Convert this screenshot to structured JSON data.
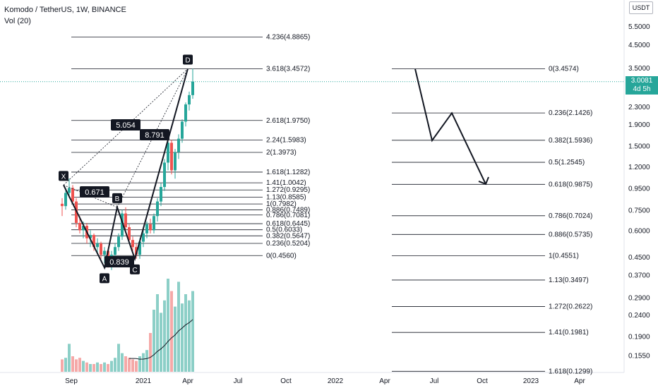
{
  "header": {
    "symbol": "Komodo / TetherUS, 1W, BINANCE",
    "volume": "Vol (20)"
  },
  "axis": {
    "currency": "USDT",
    "last_price": "3.0081",
    "countdown": "4d 5h",
    "price_labels": [
      "5.5000",
      "4.5000",
      "3.5000",
      "2.3000",
      "1.9000",
      "1.5000",
      "1.2000",
      "0.9500",
      "0.7500",
      "0.6000",
      "0.4500",
      "0.3700",
      "0.2900",
      "0.2400",
      "0.1900",
      "0.1550"
    ],
    "time_labels": [
      "Sep",
      "2021",
      "Apr",
      "Jul",
      "Oct",
      "2022",
      "Apr",
      "Jul",
      "Oct",
      "2023",
      "Apr"
    ]
  },
  "colors": {
    "up": "#26a69a",
    "down": "#ef5350",
    "vol_up": "#8ccfc7",
    "vol_down": "#f5a9a8",
    "line": "#131722",
    "price_line": "#26a69a"
  },
  "chart_data": {
    "type": "candlestick",
    "y_scale": "log",
    "title": "Komodo / TetherUS, 1W, BINANCE",
    "harmonic_points": [
      {
        "label": "X",
        "price": 0.98,
        "date": "2020-08-17"
      },
      {
        "label": "A",
        "price": 0.4,
        "date": "2020-11-02"
      },
      {
        "label": "B",
        "price": 0.77,
        "date": "2020-11-30"
      },
      {
        "label": "C",
        "price": 0.44,
        "date": "2020-12-28"
      },
      {
        "label": "D",
        "price": 3.46,
        "date": "2021-04-05"
      }
    ],
    "ratios": [
      "0.671",
      "0.839",
      "5.054",
      "8.791"
    ],
    "fib_left": [
      "4.236(4.8865)",
      "3.618(3.4572)",
      "2.618(1.9750)",
      "2.24(1.5983)",
      "2(1.3973)",
      "1.618(1.1282)",
      "1.41(1.0042)",
      "1.272(0.9295)",
      "1.13(0.8585)",
      "1(0.7982)",
      "0.886(0.7489)",
      "0.786(0.7081)",
      "0.618(0.6445)",
      "0.5(0.6033)",
      "0.382(0.5647)",
      "0.236(0.5204)",
      "0(0.4560)"
    ],
    "fib_right": [
      "0(3.4574)",
      "0.236(2.1426)",
      "0.382(1.5936)",
      "0.5(1.2545)",
      "0.618(0.9875)",
      "0.786(0.7024)",
      "0.886(0.5735)",
      "1(0.4551)",
      "1.13(0.3497)",
      "1.272(0.2622)",
      "1.41(0.1981)",
      "1.618(0.1299)"
    ],
    "projection": [
      3.46,
      1.59,
      2.14,
      0.99
    ],
    "candles": [
      [
        0.8,
        0.85,
        0.7,
        0.78
      ],
      [
        0.78,
        0.95,
        0.75,
        0.9
      ],
      [
        0.9,
        1.05,
        0.85,
        0.95
      ],
      [
        0.95,
        0.98,
        0.8,
        0.82
      ],
      [
        0.82,
        0.85,
        0.62,
        0.65
      ],
      [
        0.65,
        0.7,
        0.58,
        0.6
      ],
      [
        0.6,
        0.66,
        0.55,
        0.63
      ],
      [
        0.63,
        0.65,
        0.52,
        0.55
      ],
      [
        0.55,
        0.6,
        0.5,
        0.57
      ],
      [
        0.57,
        0.58,
        0.48,
        0.5
      ],
      [
        0.5,
        0.55,
        0.46,
        0.52
      ],
      [
        0.52,
        0.53,
        0.44,
        0.46
      ],
      [
        0.46,
        0.5,
        0.42,
        0.48
      ],
      [
        0.48,
        0.49,
        0.4,
        0.42
      ],
      [
        0.42,
        0.48,
        0.39,
        0.46
      ],
      [
        0.46,
        0.52,
        0.44,
        0.5
      ],
      [
        0.5,
        0.58,
        0.48,
        0.56
      ],
      [
        0.56,
        0.75,
        0.54,
        0.72
      ],
      [
        0.72,
        0.77,
        0.6,
        0.62
      ],
      [
        0.62,
        0.64,
        0.52,
        0.54
      ],
      [
        0.54,
        0.56,
        0.48,
        0.5
      ],
      [
        0.5,
        0.52,
        0.44,
        0.46
      ],
      [
        0.46,
        0.55,
        0.44,
        0.53
      ],
      [
        0.53,
        0.6,
        0.5,
        0.58
      ],
      [
        0.58,
        0.66,
        0.55,
        0.64
      ],
      [
        0.64,
        0.68,
        0.58,
        0.6
      ],
      [
        0.6,
        0.72,
        0.58,
        0.7
      ],
      [
        0.7,
        0.85,
        0.66,
        0.82
      ],
      [
        0.82,
        1.0,
        0.78,
        0.96
      ],
      [
        0.96,
        1.3,
        0.92,
        1.25
      ],
      [
        1.25,
        1.62,
        1.15,
        1.55
      ],
      [
        1.55,
        1.6,
        1.1,
        1.15
      ],
      [
        1.15,
        1.45,
        1.05,
        1.4
      ],
      [
        1.4,
        1.7,
        1.3,
        1.62
      ],
      [
        1.62,
        2.0,
        1.55,
        1.95
      ],
      [
        1.95,
        2.4,
        1.85,
        2.35
      ],
      [
        2.35,
        2.7,
        2.2,
        2.6
      ],
      [
        2.6,
        3.46,
        2.5,
        3.01
      ]
    ],
    "volumes": [
      8,
      9,
      18,
      10,
      8,
      9,
      7,
      6,
      5,
      5,
      6,
      5,
      6,
      5,
      7,
      9,
      18,
      12,
      10,
      9,
      8,
      7,
      10,
      12,
      14,
      25,
      40,
      50,
      38,
      46,
      60,
      52,
      42,
      58,
      44,
      50,
      46,
      52
    ]
  }
}
